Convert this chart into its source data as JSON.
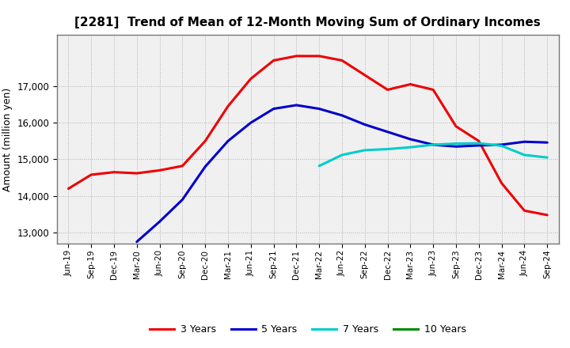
{
  "title": "[2281]  Trend of Mean of 12-Month Moving Sum of Ordinary Incomes",
  "ylabel": "Amount (million yen)",
  "ylim": [
    12700,
    18400
  ],
  "yticks": [
    13000,
    14000,
    15000,
    16000,
    17000
  ],
  "background_color": "#ffffff",
  "plot_bg_color": "#f0f0f0",
  "grid_color": "#aaaaaa",
  "x_labels": [
    "Jun-19",
    "Sep-19",
    "Dec-19",
    "Mar-20",
    "Jun-20",
    "Sep-20",
    "Dec-20",
    "Mar-21",
    "Jun-21",
    "Sep-21",
    "Dec-21",
    "Mar-22",
    "Jun-22",
    "Sep-22",
    "Dec-22",
    "Mar-23",
    "Jun-23",
    "Sep-23",
    "Dec-23",
    "Mar-24",
    "Jun-24",
    "Sep-24"
  ],
  "series": {
    "3 Years": {
      "color": "#ee0000",
      "data_x": [
        0,
        1,
        2,
        3,
        4,
        5,
        6,
        7,
        8,
        9,
        10,
        11,
        12,
        13,
        14,
        15,
        16,
        17,
        18,
        19,
        20,
        21
      ],
      "data_y": [
        14200,
        14580,
        14650,
        14620,
        14700,
        14820,
        15500,
        16450,
        17200,
        17700,
        17820,
        17820,
        17700,
        17300,
        16900,
        17050,
        16900,
        15900,
        15500,
        14350,
        13600,
        13480
      ]
    },
    "5 Years": {
      "color": "#0000cc",
      "data_x": [
        3,
        4,
        5,
        6,
        7,
        8,
        9,
        10,
        11,
        12,
        13,
        14,
        15,
        16,
        17,
        18,
        19,
        20,
        21
      ],
      "data_y": [
        12750,
        13300,
        13900,
        14800,
        15500,
        16000,
        16380,
        16480,
        16380,
        16200,
        15950,
        15750,
        15550,
        15400,
        15350,
        15380,
        15400,
        15480,
        15460
      ]
    },
    "7 Years": {
      "color": "#00cccc",
      "data_x": [
        11,
        12,
        13,
        14,
        15,
        16,
        17,
        18,
        19,
        20,
        21
      ],
      "data_y": [
        14820,
        15120,
        15250,
        15280,
        15330,
        15400,
        15430,
        15440,
        15370,
        15120,
        15050
      ]
    },
    "10 Years": {
      "color": "#008800",
      "data_x": [],
      "data_y": []
    }
  },
  "legend_labels": [
    "3 Years",
    "5 Years",
    "7 Years",
    "10 Years"
  ],
  "legend_colors": [
    "#ee0000",
    "#0000cc",
    "#00cccc",
    "#008800"
  ]
}
